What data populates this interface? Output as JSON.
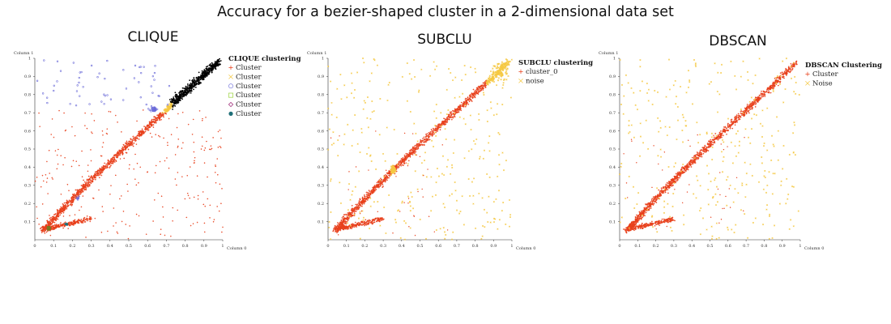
{
  "figure": {
    "title": "Accuracy for a bezier-shaped cluster in a 2-dimensional data set"
  },
  "colors": {
    "orange_red": "#e8401c",
    "yellow": "#f5c842",
    "black": "#000000",
    "blue": "#6a6ad8",
    "dark_teal": "#1f6f78",
    "olive": "#7a7a22",
    "axis": "#333333"
  },
  "chart_data": [
    {
      "type": "scatter",
      "title": "CLIQUE",
      "xlabel": "Column 0",
      "ylabel": "Column 1",
      "xlim": [
        0,
        1
      ],
      "ylim": [
        0,
        1
      ],
      "xticks": [
        "0",
        "0.1",
        "0.2",
        "0.3",
        "0.4",
        "0.5",
        "0.6",
        "0.7",
        "0.8",
        "0.9",
        "1"
      ],
      "yticks": [
        "0",
        "0.1",
        "0.2",
        "0.3",
        "0.4",
        "0.5",
        "0.6",
        "0.7",
        "0.8",
        "0.9",
        "1"
      ],
      "grid": false,
      "legend": {
        "title": "CLIQUE clustering",
        "placement": "top-right",
        "entries": [
          {
            "label": "Cluster",
            "marker": "plus",
            "color": "#e8401c"
          },
          {
            "label": "Cluster",
            "marker": "x",
            "color": "#f5c842"
          },
          {
            "label": "Cluster",
            "marker": "circle",
            "color": "#6a6ad8"
          },
          {
            "label": "Cluster",
            "marker": "square",
            "color": "#a6d854"
          },
          {
            "label": "Cluster",
            "marker": "diamond",
            "color": "#a0307a"
          },
          {
            "label": "Cluster",
            "marker": "dot",
            "color": "#1f6f78"
          }
        ]
      },
      "series": [
        {
          "marker": "plus",
          "color": "#e8401c",
          "note_region": "main diagonal band from (0.05,0.05) to (0.68,0.72), lower-left branch to (0.3,0.12), plus scattered background below y≈0.72"
        },
        {
          "marker": "x",
          "color": "#f5c842",
          "note_region": "small segment around (0.68-0.78, 0.72-0.78)"
        },
        {
          "marker": "dot",
          "color": "#000000",
          "note_region": "upper-right end of band (0.72-0.98, 0.74-1.0)"
        },
        {
          "marker": "circle",
          "color": "#6a6ad8",
          "note_region": "sparse points in top-left (y>0.72) and a knot near (0.68,0.72)"
        },
        {
          "marker": "square",
          "color": "#7a7a22",
          "note_region": "small box near (0.08,0.07)"
        },
        {
          "marker": "dot",
          "color": "#1f6f78",
          "note_region": "small knot near (0.17,0.08)"
        }
      ]
    },
    {
      "type": "scatter",
      "title": "SUBCLU",
      "xlabel": "Column 0",
      "ylabel": "Column 1",
      "xlim": [
        0,
        1
      ],
      "ylim": [
        0,
        1
      ],
      "xticks": [
        "0",
        "0.1",
        "0.2",
        "0.3",
        "0.4",
        "0.5",
        "0.6",
        "0.7",
        "0.8",
        "0.9",
        "1"
      ],
      "yticks": [
        "0",
        "0.1",
        "0.2",
        "0.3",
        "0.4",
        "0.5",
        "0.6",
        "0.7",
        "0.8",
        "0.9",
        "1"
      ],
      "grid": false,
      "legend": {
        "title": "SUBCLU clustering",
        "placement": "top-right",
        "entries": [
          {
            "label": "cluster_0",
            "marker": "plus",
            "color": "#e8401c"
          },
          {
            "label": "noise",
            "marker": "x",
            "color": "#f5c842"
          }
        ]
      },
      "series": [
        {
          "name": "cluster_0",
          "marker": "plus",
          "color": "#e8401c"
        },
        {
          "name": "noise",
          "marker": "x",
          "color": "#f5c842"
        }
      ]
    },
    {
      "type": "scatter",
      "title": "DBSCAN",
      "xlabel": "Column 0",
      "ylabel": "Column 1",
      "xlim": [
        0,
        1
      ],
      "ylim": [
        0,
        1
      ],
      "xticks": [
        "0",
        "0.1",
        "0.2",
        "0.3",
        "0.4",
        "0.5",
        "0.6",
        "0.7",
        "0.8",
        "0.9",
        "1"
      ],
      "yticks": [
        "0",
        "0.1",
        "0.2",
        "0.3",
        "0.4",
        "0.5",
        "0.6",
        "0.7",
        "0.8",
        "0.9",
        "1"
      ],
      "grid": false,
      "legend": {
        "title": "DBSCAN Clustering",
        "placement": "top-right",
        "entries": [
          {
            "label": "Cluster",
            "marker": "plus",
            "color": "#e8401c"
          },
          {
            "label": "Noise",
            "marker": "x",
            "color": "#f5c842"
          }
        ]
      },
      "series": [
        {
          "name": "Cluster",
          "marker": "plus",
          "color": "#e8401c"
        },
        {
          "name": "Noise",
          "marker": "x",
          "color": "#f5c842"
        }
      ]
    }
  ]
}
